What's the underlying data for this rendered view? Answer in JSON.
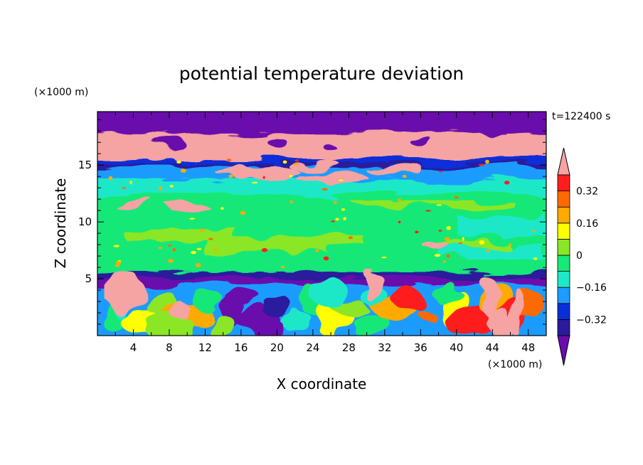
{
  "chart_data": {
    "type": "heatmap",
    "title": "potential temperature deviation",
    "xlabel": "X coordinate",
    "ylabel": "Z coordinate",
    "x_unit": "(×1000 m)",
    "y_unit": "(×1000 m)",
    "time_label": "t=122400 s",
    "xlim": [
      0,
      50
    ],
    "ylim": [
      0,
      19.7
    ],
    "x_ticks": [
      4,
      8,
      12,
      16,
      20,
      24,
      28,
      32,
      36,
      40,
      44,
      48
    ],
    "y_ticks": [
      5,
      10,
      15
    ],
    "colorbar": {
      "levels": [
        -0.4,
        -0.32,
        -0.24,
        -0.16,
        -0.08,
        0,
        0.08,
        0.16,
        0.24,
        0.32,
        0.4
      ],
      "labels": [
        "0.32",
        "0.16",
        "0",
        "−0.16",
        "−0.32"
      ],
      "label_values": [
        0.32,
        0.16,
        0,
        -0.16,
        -0.32
      ],
      "colors": [
        "#6a0dad",
        "#2a1a9c",
        "#0a2ed8",
        "#1e9bff",
        "#1ee8c8",
        "#18e878",
        "#8be628",
        "#ffff00",
        "#ffaa00",
        "#ff6a00",
        "#ff1e1e",
        "#f5a3a3"
      ],
      "extend": "both"
    },
    "layers": [
      {
        "z": [
          18.2,
          19.7
        ],
        "value": "<-0.4"
      },
      {
        "z": [
          15.5,
          18.2
        ],
        "value": ">0.4"
      },
      {
        "z": [
          15.0,
          15.5
        ],
        "value": "-0.4 to -0.32"
      },
      {
        "z": [
          13.8,
          15.0
        ],
        "value": "-0.16 to -0.08"
      },
      {
        "z": [
          5.5,
          13.8
        ],
        "value": "-0.08 to 0.08"
      },
      {
        "z": [
          4.6,
          5.5
        ],
        "value": "<-0.4"
      },
      {
        "z": [
          0,
          4.6
        ],
        "value": "-0.4 to 0.4"
      }
    ]
  }
}
